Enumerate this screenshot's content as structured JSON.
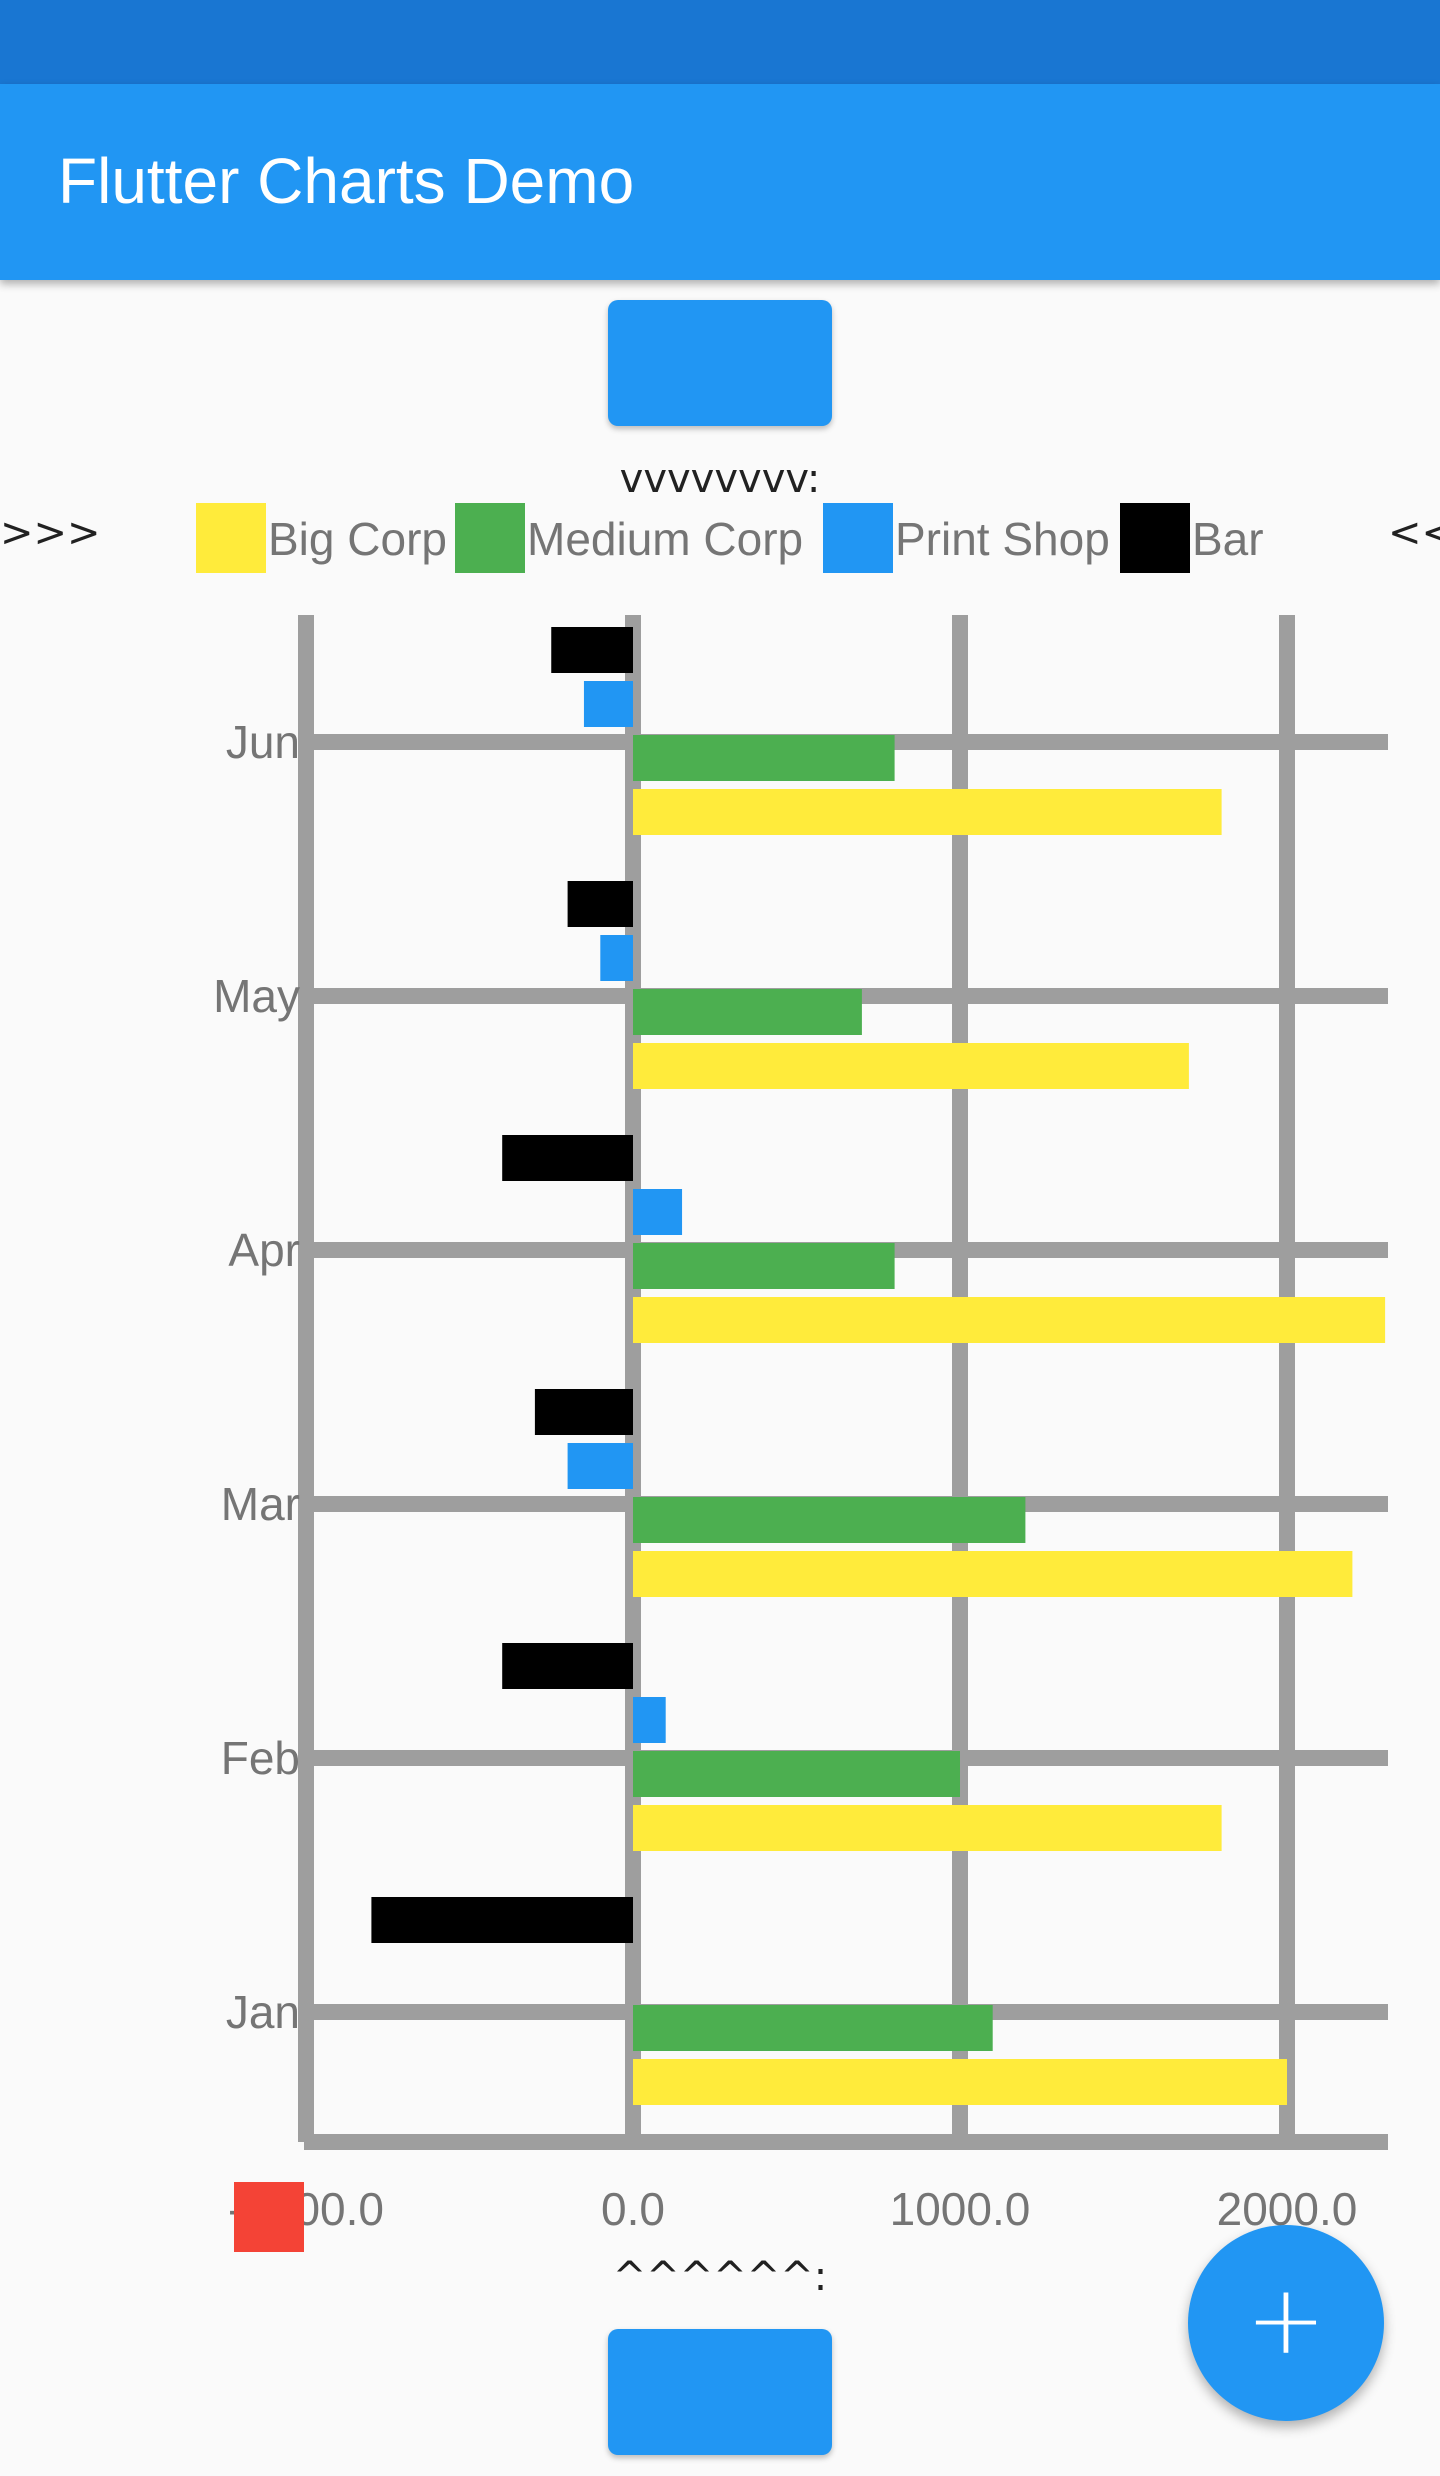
{
  "app_bar": {
    "title": "Flutter Charts Demo"
  },
  "chart_data": {
    "type": "bar",
    "orientation": "horizontal",
    "top_label": "vvvvvvvv:",
    "bottom_label": "^^^^^^:",
    "legend_left_arrow": ">>>",
    "legend_right_arrow": "<<",
    "categories": [
      "Jan",
      "Feb",
      "Mar",
      "Apr",
      "May",
      "Jun"
    ],
    "series": [
      {
        "name": "Big Corp",
        "color": "#ffeb3b",
        "values": [
          2000,
          1800,
          2200,
          2300,
          1700,
          1800
        ]
      },
      {
        "name": "Medium Corp",
        "color": "#4caf50",
        "values": [
          1100,
          1000,
          1200,
          800,
          700,
          800
        ]
      },
      {
        "name": "Print Shop",
        "color": "#2196f3",
        "values": [
          0,
          100,
          -200,
          150,
          -100,
          -150
        ]
      },
      {
        "name": "Bar",
        "color": "#000000",
        "values": [
          -800,
          -400,
          -300,
          -400,
          -200,
          -250
        ]
      }
    ],
    "x_ticks": [
      "-1000.0",
      "0.0",
      "1000.0",
      "2000.0"
    ],
    "xlim": [
      -1000,
      2300
    ],
    "grid": true,
    "legend_position": "top"
  },
  "colors": {
    "accent": "#2196f3",
    "grid": "#9e9e9e",
    "marker": "#f44336"
  },
  "fab": {
    "icon": "+"
  }
}
